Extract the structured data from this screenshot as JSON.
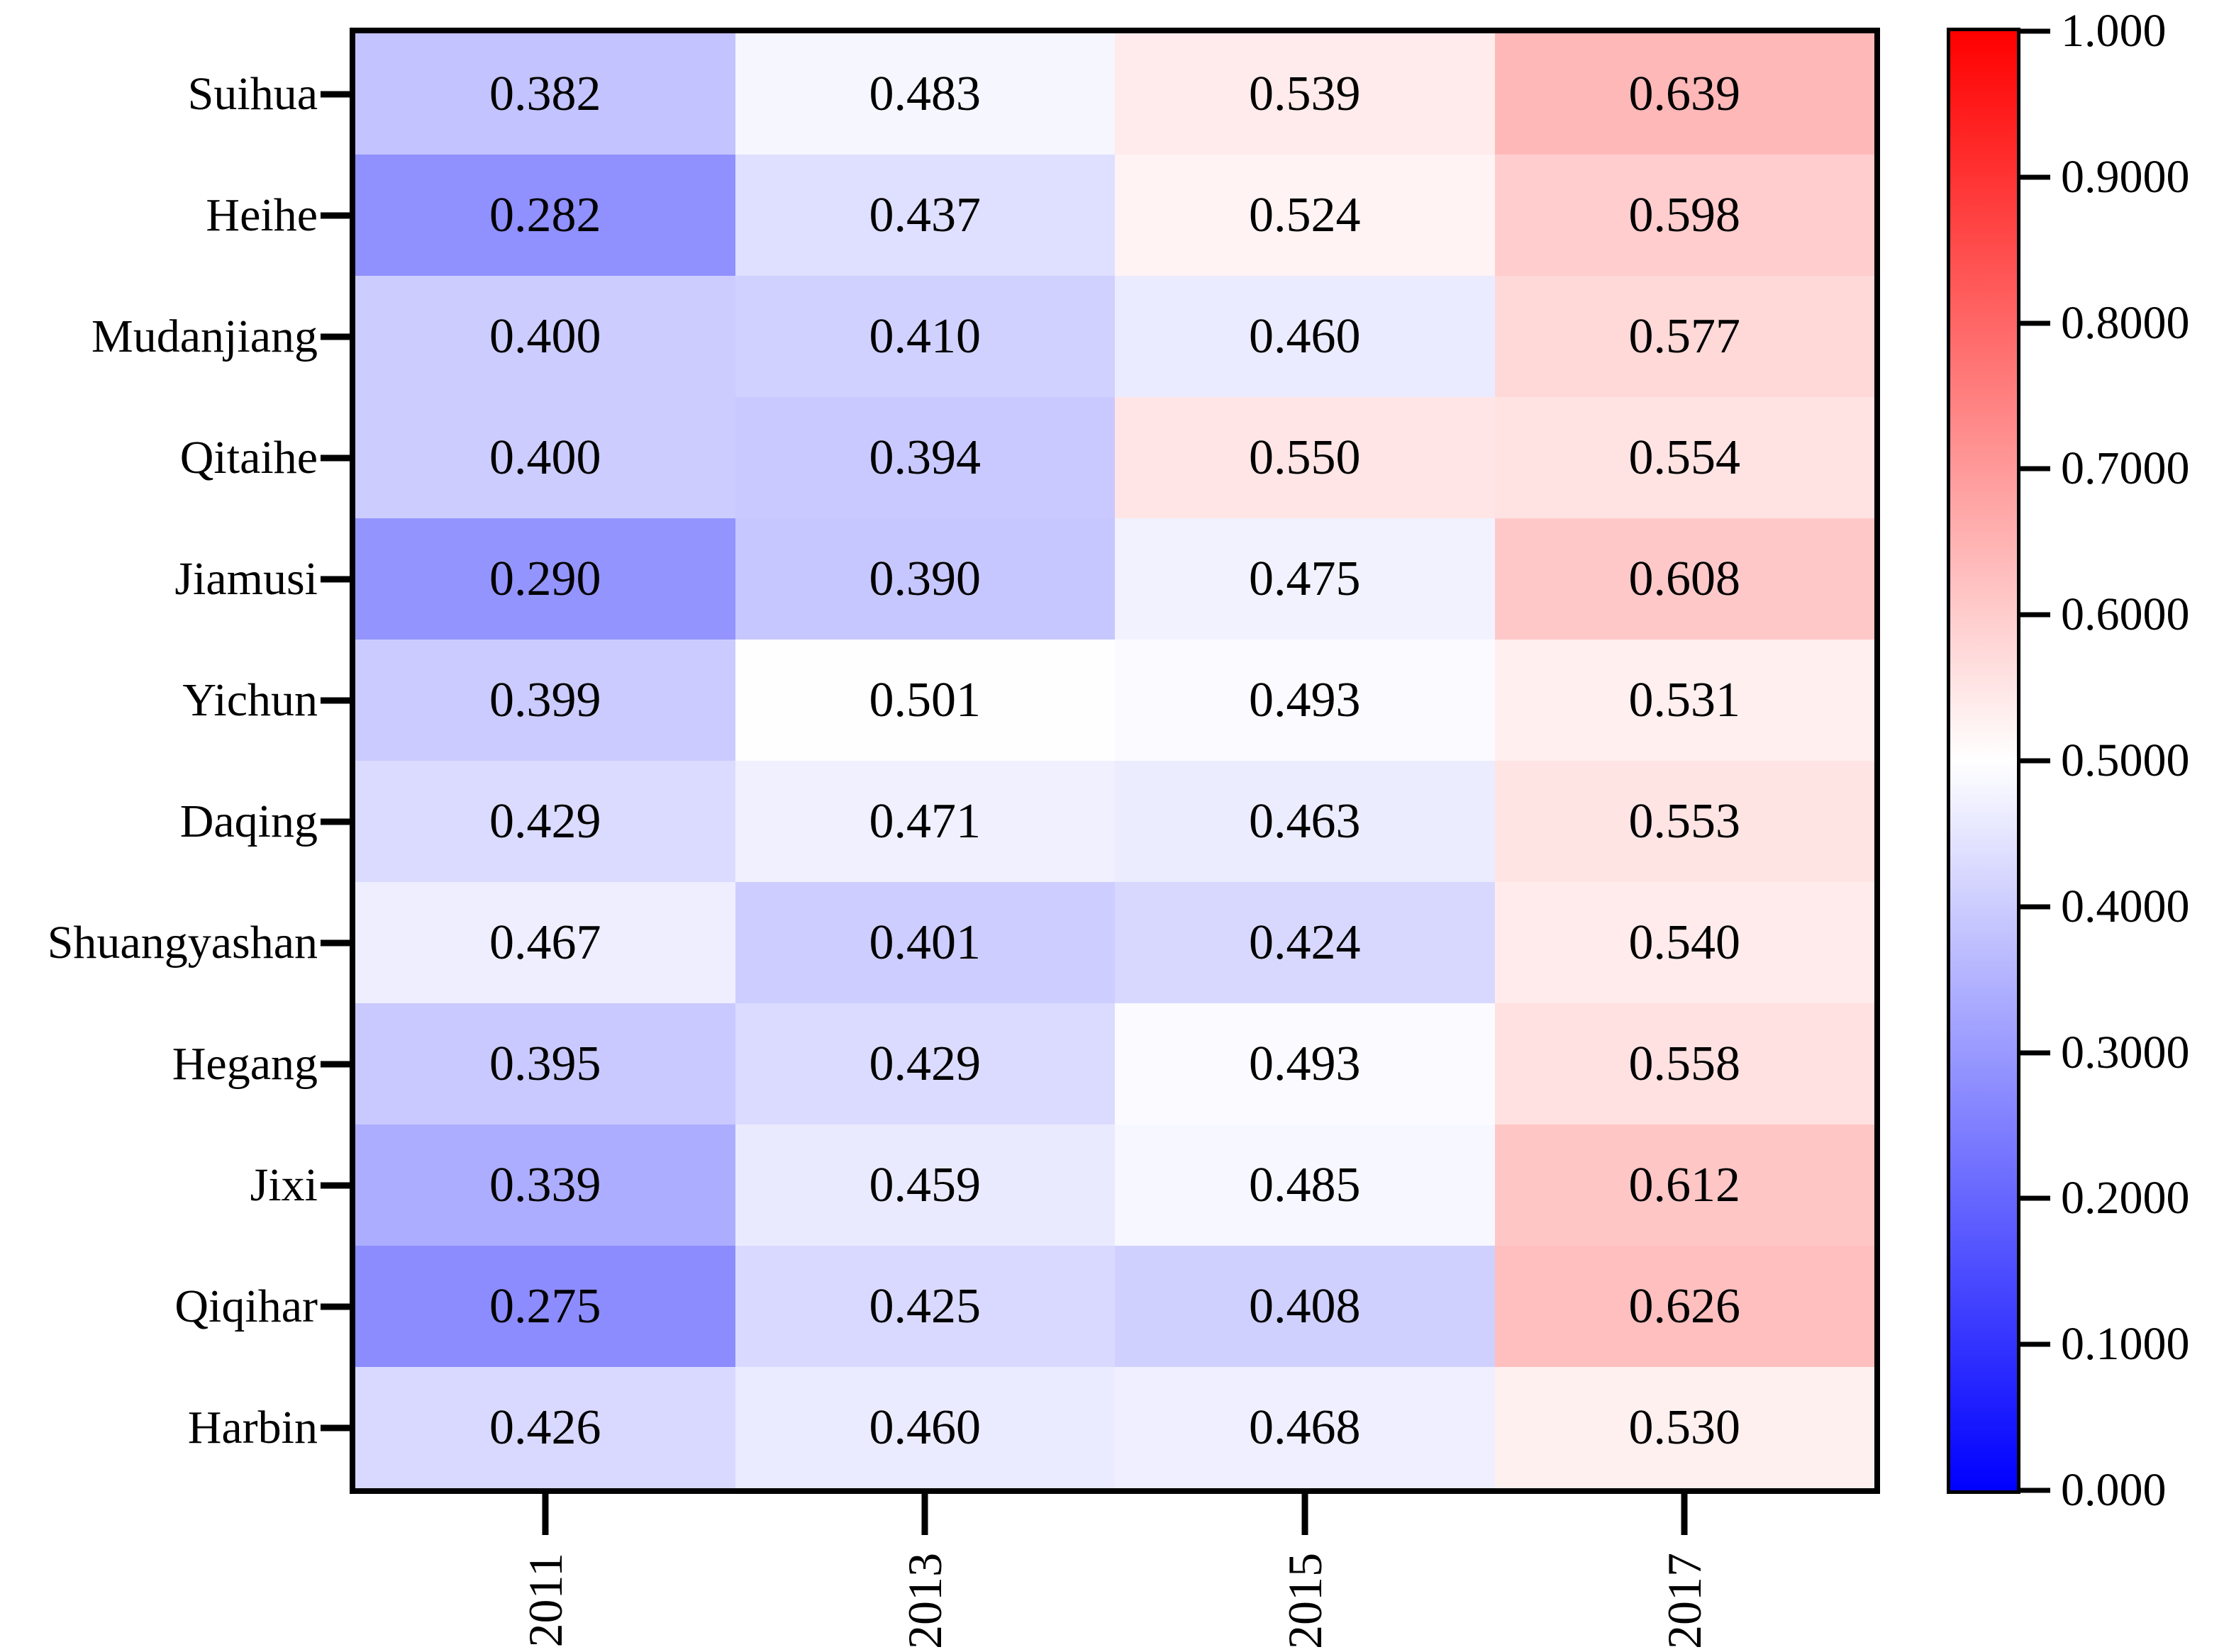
{
  "figure": {
    "background_color": "#ffffff",
    "frame_color": "#000000",
    "text_color": "#000000"
  },
  "chart_data": {
    "type": "heatmap",
    "title": "",
    "xlabel": "",
    "ylabel": "",
    "rows": [
      "Suihua",
      "Heihe",
      "Mudanjiang",
      "Qitaihe",
      "Jiamusi",
      "Yichun",
      "Daqing",
      "Shuangyashan",
      "Hegang",
      "Jixi",
      "Qiqihar",
      "Harbin"
    ],
    "columns": [
      "2011",
      "2013",
      "2015",
      "2017"
    ],
    "values": [
      [
        0.382,
        0.483,
        0.539,
        0.639
      ],
      [
        0.282,
        0.437,
        0.524,
        0.598
      ],
      [
        0.4,
        0.41,
        0.46,
        0.577
      ],
      [
        0.4,
        0.394,
        0.55,
        0.554
      ],
      [
        0.29,
        0.39,
        0.475,
        0.608
      ],
      [
        0.399,
        0.501,
        0.493,
        0.531
      ],
      [
        0.429,
        0.471,
        0.463,
        0.553
      ],
      [
        0.467,
        0.401,
        0.424,
        0.54
      ],
      [
        0.395,
        0.429,
        0.493,
        0.558
      ],
      [
        0.339,
        0.459,
        0.485,
        0.612
      ],
      [
        0.275,
        0.425,
        0.408,
        0.626
      ],
      [
        0.426,
        0.46,
        0.468,
        0.53
      ]
    ],
    "value_decimals": 3,
    "vmin": 0.0,
    "vmax": 1.0,
    "colormap": {
      "name": "bwr",
      "low": "#0000ff",
      "mid": "#ffffff",
      "high": "#ff0000"
    },
    "colorbar": {
      "position": "right",
      "tick_labels": [
        "1.000",
        "0.9000",
        "0.8000",
        "0.7000",
        "0.6000",
        "0.5000",
        "0.4000",
        "0.3000",
        "0.2000",
        "0.1000",
        "0.000"
      ],
      "tick_values": [
        1.0,
        0.9,
        0.8,
        0.7,
        0.6,
        0.5,
        0.4,
        0.3,
        0.2,
        0.1,
        0.0
      ]
    },
    "layout_hints": {
      "grid": "off",
      "x_tick_label_rotation_deg": 90,
      "cell_text_color": "#000000"
    }
  }
}
